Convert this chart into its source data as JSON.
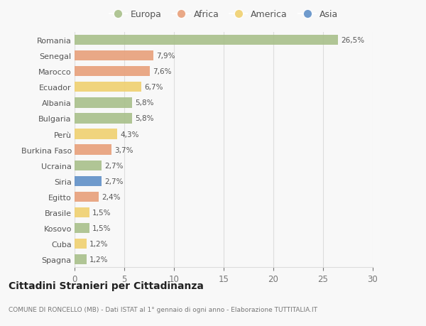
{
  "countries": [
    "Romania",
    "Senegal",
    "Marocco",
    "Ecuador",
    "Albania",
    "Bulgaria",
    "Perù",
    "Burkina Faso",
    "Ucraina",
    "Siria",
    "Egitto",
    "Brasile",
    "Kosovo",
    "Cuba",
    "Spagna"
  ],
  "values": [
    26.5,
    7.9,
    7.6,
    6.7,
    5.8,
    5.8,
    4.3,
    3.7,
    2.7,
    2.7,
    2.4,
    1.5,
    1.5,
    1.2,
    1.2
  ],
  "labels": [
    "26,5%",
    "7,9%",
    "7,6%",
    "6,7%",
    "5,8%",
    "5,8%",
    "4,3%",
    "3,7%",
    "2,7%",
    "2,7%",
    "2,4%",
    "1,5%",
    "1,5%",
    "1,2%",
    "1,2%"
  ],
  "continents": [
    "Europa",
    "Africa",
    "Africa",
    "America",
    "Europa",
    "Europa",
    "America",
    "Africa",
    "Europa",
    "Asia",
    "Africa",
    "America",
    "Europa",
    "America",
    "Europa"
  ],
  "colors": {
    "Europa": "#a8c08a",
    "Africa": "#e8a07a",
    "America": "#f0d070",
    "Asia": "#6090c8"
  },
  "legend_order": [
    "Europa",
    "Africa",
    "America",
    "Asia"
  ],
  "title": "Cittadini Stranieri per Cittadinanza",
  "subtitle": "COMUNE DI RONCELLO (MB) - Dati ISTAT al 1° gennaio di ogni anno - Elaborazione TUTTITALIA.IT",
  "xlim": [
    0,
    30
  ],
  "xticks": [
    0,
    5,
    10,
    15,
    20,
    25,
    30
  ],
  "background_color": "#f8f8f8",
  "grid_color": "#dddddd"
}
